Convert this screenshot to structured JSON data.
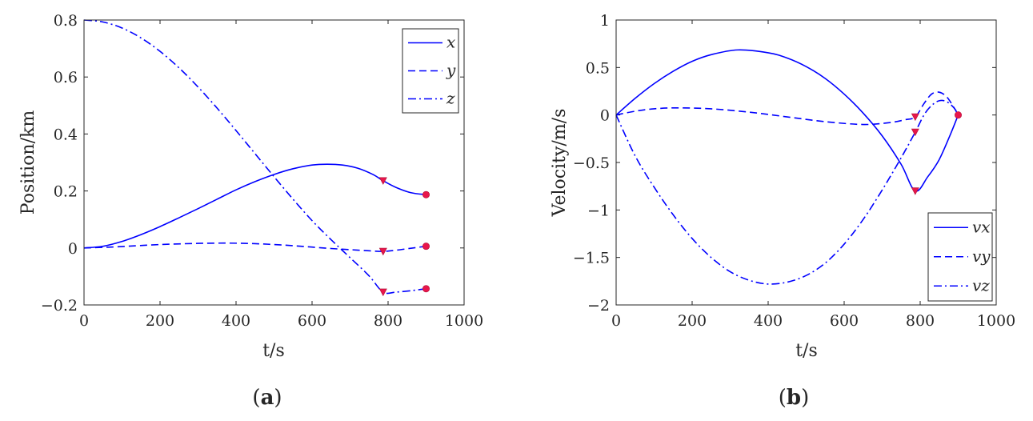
{
  "colors": {
    "line": "#0000ff",
    "marker": "#e8164b",
    "axis": "#262626"
  },
  "chart_data": [
    {
      "type": "line",
      "caption_text": "a",
      "caption_open": "(",
      "caption_close": ")",
      "xlabel": "t/s",
      "ylabel": "Position/km",
      "xlim": [
        0,
        1000
      ],
      "ylim": [
        -0.2,
        0.8
      ],
      "xticks": [
        0,
        200,
        400,
        600,
        800,
        1000
      ],
      "xtick_labels": [
        "0",
        "200",
        "400",
        "600",
        "800",
        "1000"
      ],
      "yticks": [
        -0.2,
        0,
        0.2,
        0.4,
        0.6,
        0.8
      ],
      "ytick_labels": [
        "−0.2",
        "0",
        "0.2",
        "0.4",
        "0.6",
        "0.8"
      ],
      "legend_position": "top-right",
      "series": [
        {
          "name": "x",
          "style": "solid",
          "x": [
            0,
            50,
            100,
            150,
            200,
            250,
            300,
            350,
            400,
            450,
            500,
            550,
            600,
            640,
            680,
            720,
            760,
            787,
            820,
            860,
            900
          ],
          "y": [
            0,
            0.006,
            0.023,
            0.047,
            0.075,
            0.106,
            0.138,
            0.171,
            0.204,
            0.233,
            0.258,
            0.278,
            0.291,
            0.294,
            0.291,
            0.28,
            0.258,
            0.236,
            0.213,
            0.194,
            0.187
          ]
        },
        {
          "name": "y",
          "style": "dashed",
          "x": [
            0,
            50,
            100,
            200,
            300,
            380,
            450,
            500,
            550,
            600,
            650,
            700,
            750,
            787,
            820,
            860,
            900
          ],
          "y": [
            0,
            0.002,
            0.005,
            0.012,
            0.016,
            0.017,
            0.015,
            0.012,
            0.008,
            0.003,
            -0.002,
            -0.006,
            -0.01,
            -0.012,
            -0.008,
            -0.001,
            0.006
          ]
        },
        {
          "name": "z",
          "style": "dashdot",
          "x": [
            0,
            50,
            100,
            150,
            200,
            250,
            300,
            350,
            400,
            450,
            500,
            550,
            600,
            650,
            700,
            750,
            787,
            820,
            860,
            900
          ],
          "y": [
            0.8,
            0.793,
            0.772,
            0.737,
            0.69,
            0.632,
            0.565,
            0.491,
            0.412,
            0.331,
            0.25,
            0.171,
            0.096,
            0.029,
            -0.034,
            -0.098,
            -0.155,
            -0.155,
            -0.15,
            -0.143
          ]
        }
      ],
      "markers": [
        {
          "shape": "triangle",
          "x": 787,
          "y": 0.236
        },
        {
          "shape": "triangle",
          "x": 787,
          "y": -0.012
        },
        {
          "shape": "triangle",
          "x": 787,
          "y": -0.155
        },
        {
          "shape": "circle",
          "x": 900,
          "y": 0.187
        },
        {
          "shape": "circle",
          "x": 900,
          "y": 0.006
        },
        {
          "shape": "circle",
          "x": 900,
          "y": -0.143
        }
      ]
    },
    {
      "type": "line",
      "caption_text": "b",
      "caption_open": "(",
      "caption_close": ")",
      "xlabel": "t/s",
      "ylabel": "Velocity/m/s",
      "xlim": [
        0,
        1000
      ],
      "ylim": [
        -2,
        1
      ],
      "xticks": [
        0,
        200,
        400,
        600,
        800,
        1000
      ],
      "xtick_labels": [
        "0",
        "200",
        "400",
        "600",
        "800",
        "1000"
      ],
      "yticks": [
        -2,
        -1.5,
        -1,
        -0.5,
        0,
        0.5,
        1
      ],
      "ytick_labels": [
        "−2",
        "−1.5",
        "−1",
        "−0.5",
        "0",
        "0.5",
        "1"
      ],
      "legend_position": "bottom-right",
      "series": [
        {
          "name": "vx",
          "style": "solid",
          "x": [
            0,
            50,
            100,
            150,
            200,
            250,
            320,
            400,
            450,
            500,
            550,
            600,
            650,
            700,
            750,
            787,
            820,
            850,
            880,
            900
          ],
          "y": [
            0,
            0.175,
            0.33,
            0.46,
            0.565,
            0.635,
            0.685,
            0.655,
            0.6,
            0.51,
            0.385,
            0.22,
            0.02,
            -0.22,
            -0.52,
            -0.8,
            -0.65,
            -0.47,
            -0.2,
            0
          ]
        },
        {
          "name": "vy",
          "style": "dashed",
          "x": [
            0,
            50,
            100,
            160,
            250,
            350,
            450,
            550,
            650,
            720,
            760,
            787,
            810,
            830,
            850,
            870,
            890,
            900
          ],
          "y": [
            0,
            0.04,
            0.065,
            0.075,
            0.065,
            0.03,
            -0.02,
            -0.07,
            -0.1,
            -0.08,
            -0.05,
            -0.02,
            0.12,
            0.22,
            0.24,
            0.19,
            0.07,
            0
          ]
        },
        {
          "name": "vz",
          "style": "dashdot",
          "x": [
            0,
            50,
            100,
            150,
            200,
            250,
            300,
            350,
            400,
            450,
            500,
            550,
            600,
            650,
            700,
            750,
            787,
            810,
            830,
            850,
            870,
            890,
            900
          ],
          "y": [
            0,
            -0.43,
            -0.76,
            -1.05,
            -1.3,
            -1.5,
            -1.65,
            -1.74,
            -1.78,
            -1.76,
            -1.69,
            -1.56,
            -1.36,
            -1.1,
            -0.79,
            -0.45,
            -0.18,
            0,
            0.1,
            0.15,
            0.14,
            0.07,
            0
          ]
        }
      ],
      "markers": [
        {
          "shape": "triangle",
          "x": 787,
          "y": -0.8
        },
        {
          "shape": "triangle",
          "x": 787,
          "y": -0.02
        },
        {
          "shape": "triangle",
          "x": 787,
          "y": -0.18
        },
        {
          "shape": "circle",
          "x": 900,
          "y": 0
        }
      ]
    }
  ]
}
